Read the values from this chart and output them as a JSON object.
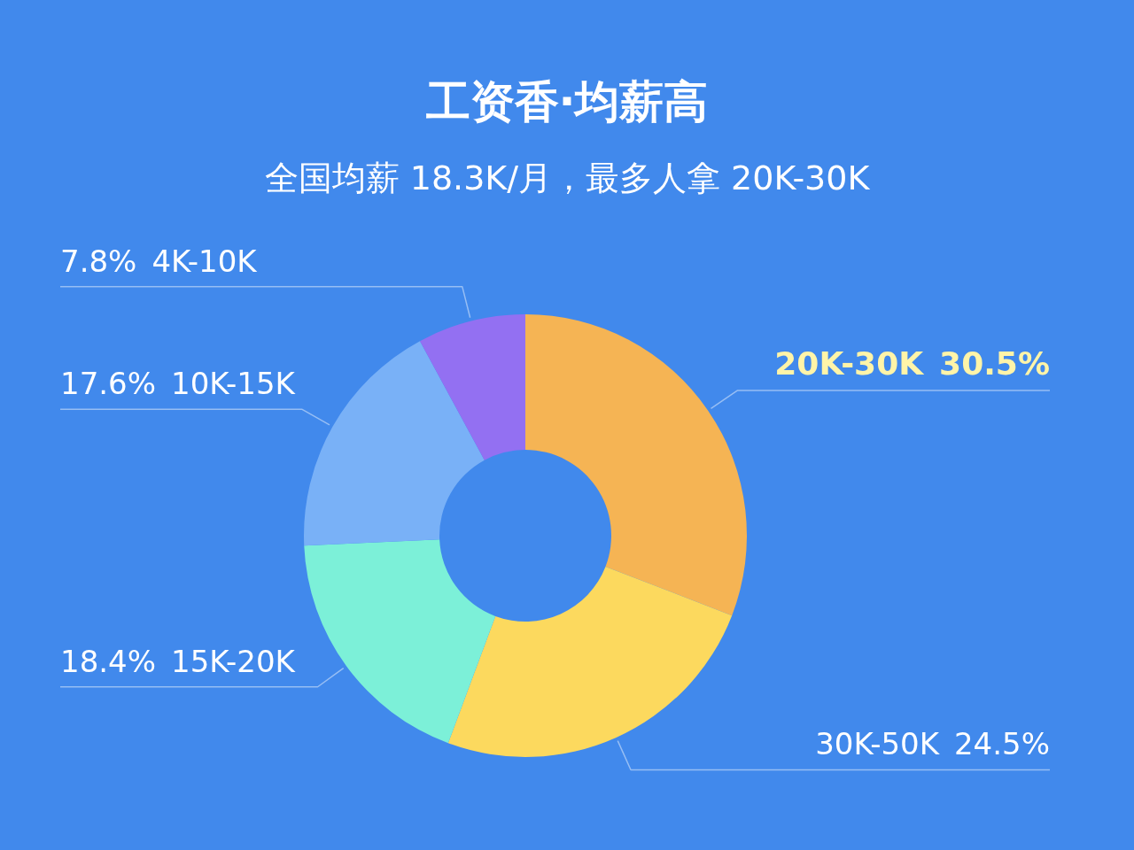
{
  "chart_data": {
    "type": "donut",
    "title": "工资香·均薪高",
    "subtitle": "全国均薪 18.3K/月，最多人拿 20K-30K",
    "categories": [
      "20K-30K",
      "30K-50K",
      "15K-20K",
      "10K-15K",
      "4K-10K"
    ],
    "values": [
      30.5,
      24.5,
      18.4,
      17.6,
      7.8
    ],
    "colors": [
      "#f5b454",
      "#fcd95e",
      "#7cf0d8",
      "#79b1f7",
      "#9370f2"
    ],
    "value_labels": [
      "30.5%",
      "24.5%",
      "18.4%",
      "17.6%",
      "7.8%"
    ]
  }
}
